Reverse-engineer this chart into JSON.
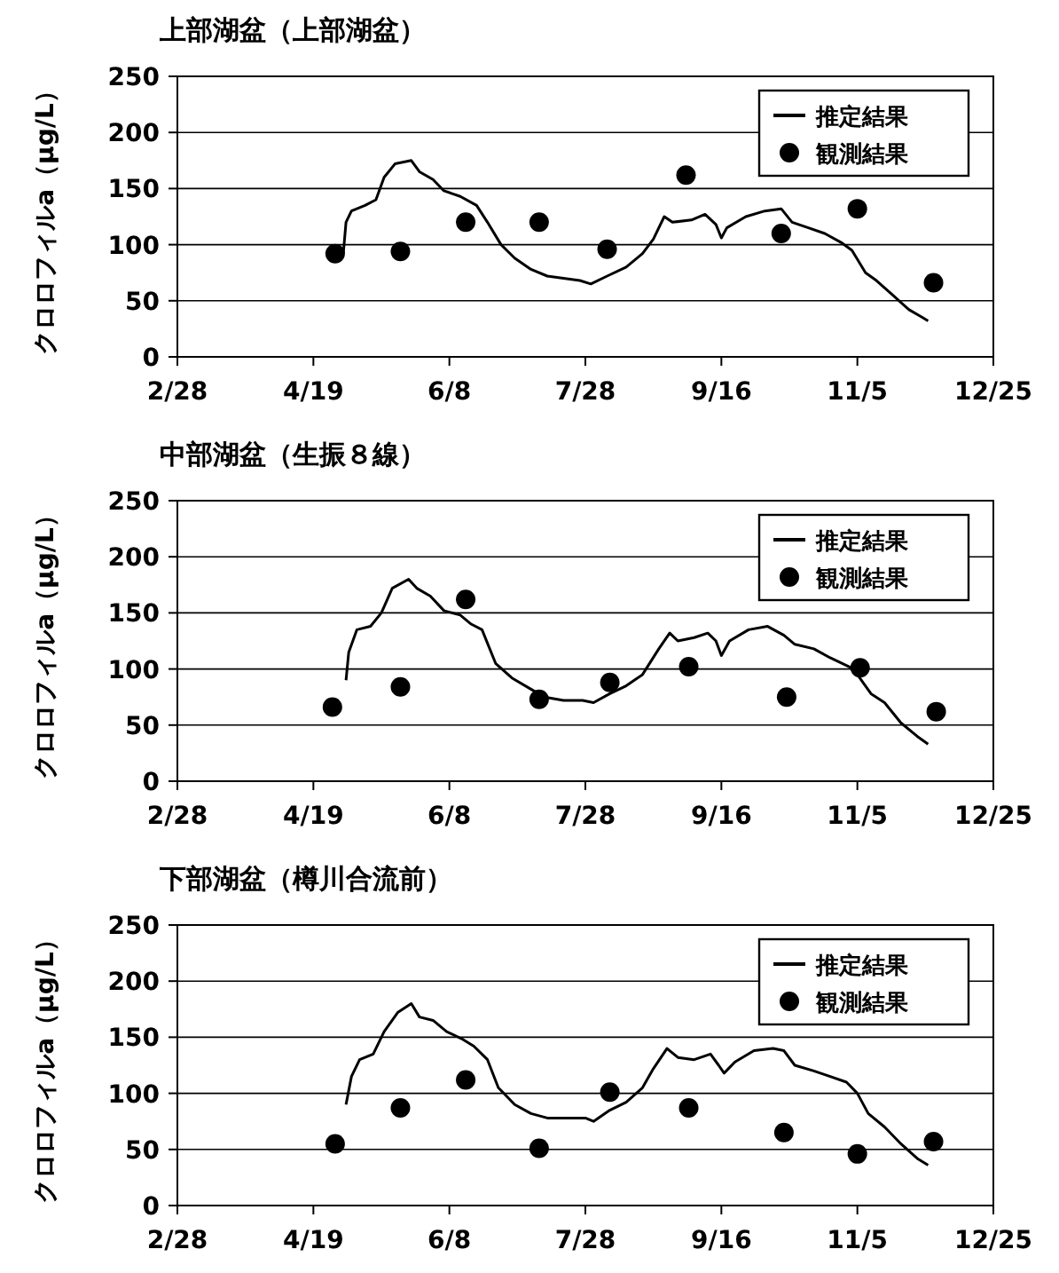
{
  "chart_data": [
    {
      "type": "line",
      "title": "上部湖盆（上部湖盆）",
      "ylabel": "クロロフィルa（µg/L）",
      "xlim": [
        "--02-28",
        "--12-25"
      ],
      "xticks": [
        {
          "value": "--02-28",
          "label": "2/28"
        },
        {
          "value": "--04-19",
          "label": "4/19"
        },
        {
          "value": "--06-08",
          "label": "6/8"
        },
        {
          "value": "--07-28",
          "label": "7/28"
        },
        {
          "value": "--09-16",
          "label": "9/16"
        },
        {
          "value": "--11-05",
          "label": "11/5"
        },
        {
          "value": "--12-25",
          "label": "12/25"
        }
      ],
      "ylim": [
        0,
        250
      ],
      "yticks": [
        0,
        50,
        100,
        150,
        200,
        250
      ],
      "grid": "y",
      "legend": "top right",
      "series": [
        {
          "name": "推定結果",
          "color": "#000000",
          "marker": "none",
          "x": [
            "--04-27",
            "--04-30",
            "--05-01",
            "--05-03",
            "--05-08",
            "--05-12",
            "--05-15",
            "--05-19",
            "--05-25",
            "--05-28",
            "--06-02",
            "--06-06",
            "--06-12",
            "--06-18",
            "--06-22",
            "--06-27",
            "--07-02",
            "--07-08",
            "--07-14",
            "--07-20",
            "--07-26",
            "--07-30",
            "--08-05",
            "--08-12",
            "--08-18",
            "--08-22",
            "--08-26",
            "--08-29",
            "--09-05",
            "--09-10",
            "--09-14",
            "--09-16",
            "--09-18",
            "--09-25",
            "--10-02",
            "--10-08",
            "--10-12",
            "--10-18",
            "--10-24",
            "--10-30",
            "--11-03",
            "--11-08",
            "--11-12",
            "--11-18",
            "--11-24",
            "--11-29",
            "--12-01"
          ],
          "values": [
            90,
            92,
            120,
            130,
            135,
            140,
            160,
            172,
            175,
            165,
            158,
            148,
            143,
            135,
            120,
            100,
            88,
            78,
            72,
            70,
            68,
            65,
            72,
            80,
            92,
            105,
            125,
            120,
            122,
            127,
            118,
            106,
            115,
            125,
            130,
            132,
            120,
            115,
            110,
            102,
            95,
            75,
            68,
            55,
            42,
            35,
            32
          ]
        },
        {
          "type": "scatter",
          "name": "観測結果",
          "color": "#000000",
          "marker": "circle",
          "x": [
            "--04-27",
            "--05-21",
            "--06-14",
            "--07-11",
            "--08-05",
            "--09-03",
            "--10-08",
            "--11-05",
            "--12-03"
          ],
          "values": [
            92,
            94,
            120,
            120,
            96,
            162,
            110,
            132,
            66
          ]
        }
      ]
    },
    {
      "type": "line",
      "title": "中部湖盆（生振８線）",
      "ylabel": "クロロフィルa（µg/L）",
      "xlim": [
        "--02-28",
        "--12-25"
      ],
      "xticks": [
        {
          "value": "--02-28",
          "label": "2/28"
        },
        {
          "value": "--04-19",
          "label": "4/19"
        },
        {
          "value": "--06-08",
          "label": "6/8"
        },
        {
          "value": "--07-28",
          "label": "7/28"
        },
        {
          "value": "--09-16",
          "label": "9/16"
        },
        {
          "value": "--11-05",
          "label": "11/5"
        },
        {
          "value": "--12-25",
          "label": "12/25"
        }
      ],
      "ylim": [
        0,
        250
      ],
      "yticks": [
        0,
        50,
        100,
        150,
        200,
        250
      ],
      "grid": "y",
      "legend": "top right",
      "series": [
        {
          "name": "推定結果",
          "color": "#000000",
          "marker": "none",
          "x": [
            "--05-01",
            "--05-02",
            "--05-05",
            "--05-10",
            "--05-14",
            "--05-18",
            "--05-24",
            "--05-27",
            "--06-01",
            "--06-06",
            "--06-12",
            "--06-16",
            "--06-20",
            "--06-25",
            "--07-01",
            "--07-08",
            "--07-13",
            "--07-20",
            "--07-27",
            "--07-31",
            "--08-06",
            "--08-12",
            "--08-18",
            "--08-24",
            "--08-28",
            "--08-31",
            "--09-06",
            "--09-11",
            "--09-14",
            "--09-16",
            "--09-19",
            "--09-26",
            "--10-03",
            "--10-09",
            "--10-13",
            "--10-20",
            "--10-26",
            "--11-02",
            "--11-05",
            "--11-10",
            "--11-15",
            "--11-21",
            "--11-27",
            "--12-01"
          ],
          "values": [
            90,
            115,
            135,
            138,
            150,
            172,
            180,
            172,
            165,
            152,
            148,
            140,
            135,
            105,
            92,
            82,
            75,
            72,
            72,
            70,
            78,
            85,
            95,
            118,
            132,
            125,
            128,
            132,
            125,
            112,
            125,
            135,
            138,
            130,
            122,
            118,
            110,
            102,
            95,
            78,
            70,
            52,
            40,
            33
          ]
        },
        {
          "type": "scatter",
          "name": "観測結果",
          "color": "#000000",
          "marker": "circle",
          "x": [
            "--04-26",
            "--05-21",
            "--06-14",
            "--07-11",
            "--08-06",
            "--09-04",
            "--10-10",
            "--11-06",
            "--12-04"
          ],
          "values": [
            66,
            84,
            162,
            73,
            88,
            102,
            75,
            101,
            62
          ]
        }
      ]
    },
    {
      "type": "line",
      "title": "下部湖盆（樽川合流前）",
      "ylabel": "クロロフィルa（µg/L）",
      "xlim": [
        "--02-28",
        "--12-25"
      ],
      "xticks": [
        {
          "value": "--02-28",
          "label": "2/28"
        },
        {
          "value": "--04-19",
          "label": "4/19"
        },
        {
          "value": "--06-08",
          "label": "6/8"
        },
        {
          "value": "--07-28",
          "label": "7/28"
        },
        {
          "value": "--09-16",
          "label": "9/16"
        },
        {
          "value": "--11-05",
          "label": "11/5"
        },
        {
          "value": "--12-25",
          "label": "12/25"
        }
      ],
      "ylim": [
        0,
        250
      ],
      "yticks": [
        0,
        50,
        100,
        150,
        200,
        250
      ],
      "grid": "y",
      "legend": "top right",
      "series": [
        {
          "name": "推定結果",
          "color": "#000000",
          "marker": "none",
          "x": [
            "--05-01",
            "--05-03",
            "--05-06",
            "--05-11",
            "--05-15",
            "--05-20",
            "--05-25",
            "--05-28",
            "--06-02",
            "--06-07",
            "--06-13",
            "--06-17",
            "--06-22",
            "--06-26",
            "--07-02",
            "--07-08",
            "--07-14",
            "--07-21",
            "--07-28",
            "--07-31",
            "--08-06",
            "--08-12",
            "--08-18",
            "--08-22",
            "--08-27",
            "--08-31",
            "--09-06",
            "--09-12",
            "--09-15",
            "--09-17",
            "--09-21",
            "--09-28",
            "--10-05",
            "--10-09",
            "--10-13",
            "--10-20",
            "--10-26",
            "--11-01",
            "--11-05",
            "--11-09",
            "--11-15",
            "--11-21",
            "--11-27",
            "--12-01"
          ],
          "values": [
            90,
            115,
            130,
            135,
            155,
            172,
            180,
            168,
            165,
            155,
            148,
            142,
            130,
            105,
            90,
            82,
            78,
            78,
            78,
            75,
            85,
            92,
            105,
            122,
            140,
            132,
            130,
            135,
            125,
            118,
            128,
            138,
            140,
            138,
            125,
            120,
            115,
            110,
            100,
            82,
            70,
            55,
            42,
            36
          ]
        },
        {
          "type": "scatter",
          "name": "観測結果",
          "color": "#000000",
          "marker": "circle",
          "x": [
            "--04-27",
            "--05-21",
            "--06-14",
            "--07-11",
            "--08-06",
            "--09-04",
            "--10-09",
            "--11-05",
            "--12-03"
          ],
          "values": [
            55,
            87,
            112,
            51,
            101,
            87,
            65,
            46,
            57
          ]
        }
      ]
    }
  ]
}
